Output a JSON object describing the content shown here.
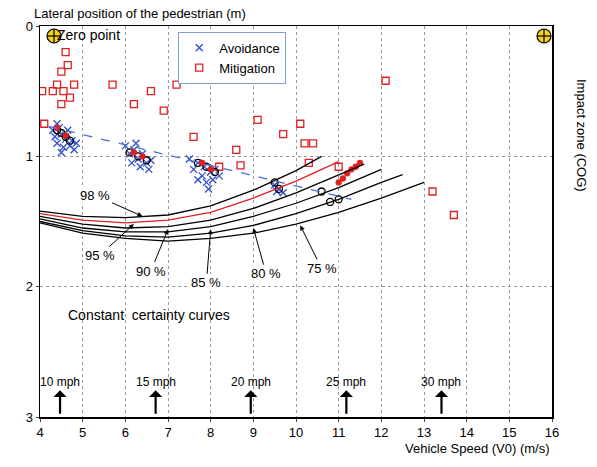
{
  "chart_data": {
    "type": "scatter",
    "x_label": "Vehicle Speed (V0) (m/s)",
    "y_label": "Lateral position of the pedestrian (m)",
    "xlim": [
      4,
      16
    ],
    "ylim": [
      3,
      0
    ],
    "xticks": [
      4,
      5,
      6,
      7,
      8,
      9,
      10,
      11,
      12,
      13,
      14,
      15,
      16
    ],
    "yticks": [
      0,
      1,
      2,
      3
    ],
    "grid": true,
    "legend": "top",
    "series": [
      {
        "name": "Avoidance",
        "type": "scatter",
        "marker": "x",
        "color": "#3050c8",
        "x": [
          4.3,
          4.35,
          4.4,
          4.45,
          4.5,
          4.55,
          4.6,
          4.65,
          4.7,
          4.75,
          4.8,
          4.85,
          4.5,
          4.4,
          6.0,
          6.1,
          6.15,
          6.2,
          6.3,
          6.35,
          6.4,
          6.5,
          6.55,
          6.6,
          6.25,
          7.5,
          7.6,
          7.7,
          7.8,
          7.85,
          7.9,
          8.0,
          8.05,
          8.1,
          8.2,
          7.95,
          7.7,
          9.5,
          9.55,
          9.6,
          9.7
        ],
        "y": [
          0.8,
          0.85,
          0.9,
          0.78,
          0.83,
          0.93,
          0.87,
          0.8,
          0.92,
          0.88,
          0.95,
          0.9,
          0.97,
          0.75,
          0.92,
          0.98,
          1.05,
          0.95,
          1.02,
          1.08,
          0.98,
          1.05,
          1.1,
          1.03,
          0.9,
          1.02,
          1.1,
          1.05,
          1.15,
          1.08,
          1.2,
          1.12,
          1.18,
          1.1,
          1.15,
          1.25,
          1.18,
          1.22,
          1.27,
          1.25,
          1.28
        ]
      },
      {
        "name": "Mitigation",
        "type": "scatter",
        "marker": "square",
        "color": "#e02020",
        "x": [
          4.05,
          4.1,
          4.3,
          4.4,
          4.5,
          4.55,
          4.6,
          4.65,
          4.7,
          4.8,
          4.5,
          5.7,
          6.2,
          6.6,
          6.9,
          7.2,
          7.6,
          8.2,
          8.3,
          8.5,
          8.6,
          8.7,
          9.1,
          9.7,
          10.1,
          10.2,
          10.3,
          10.4,
          11.0,
          12.1,
          13.2,
          13.7
        ],
        "y": [
          0.5,
          0.75,
          0.5,
          0.45,
          0.35,
          0.5,
          0.2,
          0.3,
          0.55,
          0.45,
          0.6,
          0.45,
          0.6,
          0.5,
          0.65,
          0.45,
          0.85,
          1.08,
          0.25,
          0.4,
          0.95,
          1.07,
          0.72,
          0.83,
          0.75,
          0.9,
          1.05,
          0.9,
          1.08,
          0.42,
          1.27,
          1.45
        ]
      },
      {
        "type": "scatter",
        "marker": "circle",
        "color": "#000000",
        "x": [
          4.4,
          4.5,
          4.6,
          4.7,
          6.1,
          6.3,
          6.5,
          7.7,
          7.9,
          8.1,
          9.5,
          9.6,
          10.6,
          10.8,
          11.0
        ],
        "y": [
          0.8,
          0.82,
          0.85,
          0.88,
          0.97,
          1.0,
          1.03,
          1.05,
          1.08,
          1.12,
          1.2,
          1.25,
          1.27,
          1.35,
          1.33
        ]
      },
      {
        "type": "scatter",
        "marker": "dot",
        "color": "#e02020",
        "x": [
          4.4,
          4.6,
          6.2,
          6.4,
          7.8,
          8.0,
          11.0,
          11.1,
          11.2,
          11.3,
          11.4,
          11.5
        ],
        "y": [
          0.78,
          0.84,
          0.97,
          1.0,
          1.05,
          1.1,
          1.2,
          1.17,
          1.13,
          1.1,
          1.08,
          1.05
        ]
      },
      {
        "type": "line",
        "line_style": "dash",
        "color": "#4a6fd8",
        "x": [
          4.2,
          11.3
        ],
        "y": [
          0.77,
          1.33
        ]
      },
      {
        "type": "line",
        "line_style": "solid",
        "color": "#000000",
        "x": [
          4,
          5,
          6,
          7,
          8,
          9,
          10,
          10.6
        ],
        "y": [
          1.42,
          1.46,
          1.47,
          1.45,
          1.38,
          1.26,
          1.11,
          1.0
        ]
      },
      {
        "type": "line",
        "line_style": "solid",
        "color": "#e02020",
        "x": [
          4,
          5,
          6,
          7,
          8,
          9,
          10,
          11
        ],
        "y": [
          1.44,
          1.49,
          1.51,
          1.49,
          1.43,
          1.32,
          1.19,
          1.04
        ]
      },
      {
        "type": "line",
        "line_style": "solid",
        "color": "#000000",
        "x": [
          4,
          5,
          6,
          7,
          8,
          9,
          10,
          11,
          11.6
        ],
        "y": [
          1.46,
          1.52,
          1.55,
          1.54,
          1.49,
          1.4,
          1.28,
          1.14,
          1.06
        ]
      },
      {
        "type": "line",
        "line_style": "solid",
        "color": "#000000",
        "x": [
          4,
          5,
          6,
          7,
          8,
          9,
          10,
          11,
          12
        ],
        "y": [
          1.48,
          1.55,
          1.58,
          1.58,
          1.54,
          1.46,
          1.36,
          1.24,
          1.1
        ]
      },
      {
        "type": "line",
        "line_style": "solid",
        "color": "#000000",
        "x": [
          4,
          5,
          6,
          7,
          8,
          9,
          10,
          11,
          12,
          12.5
        ],
        "y": [
          1.5,
          1.57,
          1.61,
          1.62,
          1.59,
          1.53,
          1.44,
          1.33,
          1.2,
          1.14
        ]
      },
      {
        "type": "line",
        "line_style": "solid",
        "color": "#000000",
        "x": [
          4,
          5,
          6,
          7,
          8,
          9,
          10,
          11,
          12,
          13
        ],
        "y": [
          1.51,
          1.59,
          1.63,
          1.65,
          1.63,
          1.59,
          1.52,
          1.43,
          1.32,
          1.2
        ]
      }
    ],
    "annotations": [
      {
        "text": "98 %",
        "x": 5.3,
        "y": 1.3,
        "arrow_x": 6.4,
        "arrow_y": 1.46
      },
      {
        "text": "95 %",
        "x": 5.4,
        "y": 1.76,
        "arrow_x": 6.2,
        "arrow_y": 1.52
      },
      {
        "text": "90 %",
        "x": 6.6,
        "y": 1.88,
        "arrow_x": 7.0,
        "arrow_y": 1.56
      },
      {
        "text": "85 %",
        "x": 7.9,
        "y": 1.97,
        "arrow_x": 8.0,
        "arrow_y": 1.56
      },
      {
        "text": "80 %",
        "x": 9.3,
        "y": 1.9,
        "arrow_x": 9.0,
        "arrow_y": 1.55
      },
      {
        "text": "75 %",
        "x": 10.6,
        "y": 1.86,
        "arrow_x": 10.1,
        "arrow_y": 1.53
      }
    ],
    "notes": [
      {
        "text": "Zero point",
        "x": 4.35,
        "y": 0.07
      },
      {
        "text": "Constant  certainty curves",
        "x": 4.6,
        "y": 2.22
      }
    ],
    "side_label": "Impact zone (COG)",
    "speed_marks": [
      {
        "text": "10 mph",
        "x": 4.47
      },
      {
        "text": "15 mph",
        "x": 6.71
      },
      {
        "text": "20 mph",
        "x": 8.94
      },
      {
        "text": "25 mph",
        "x": 11.18
      },
      {
        "text": "30 mph",
        "x": 13.41
      }
    ]
  }
}
